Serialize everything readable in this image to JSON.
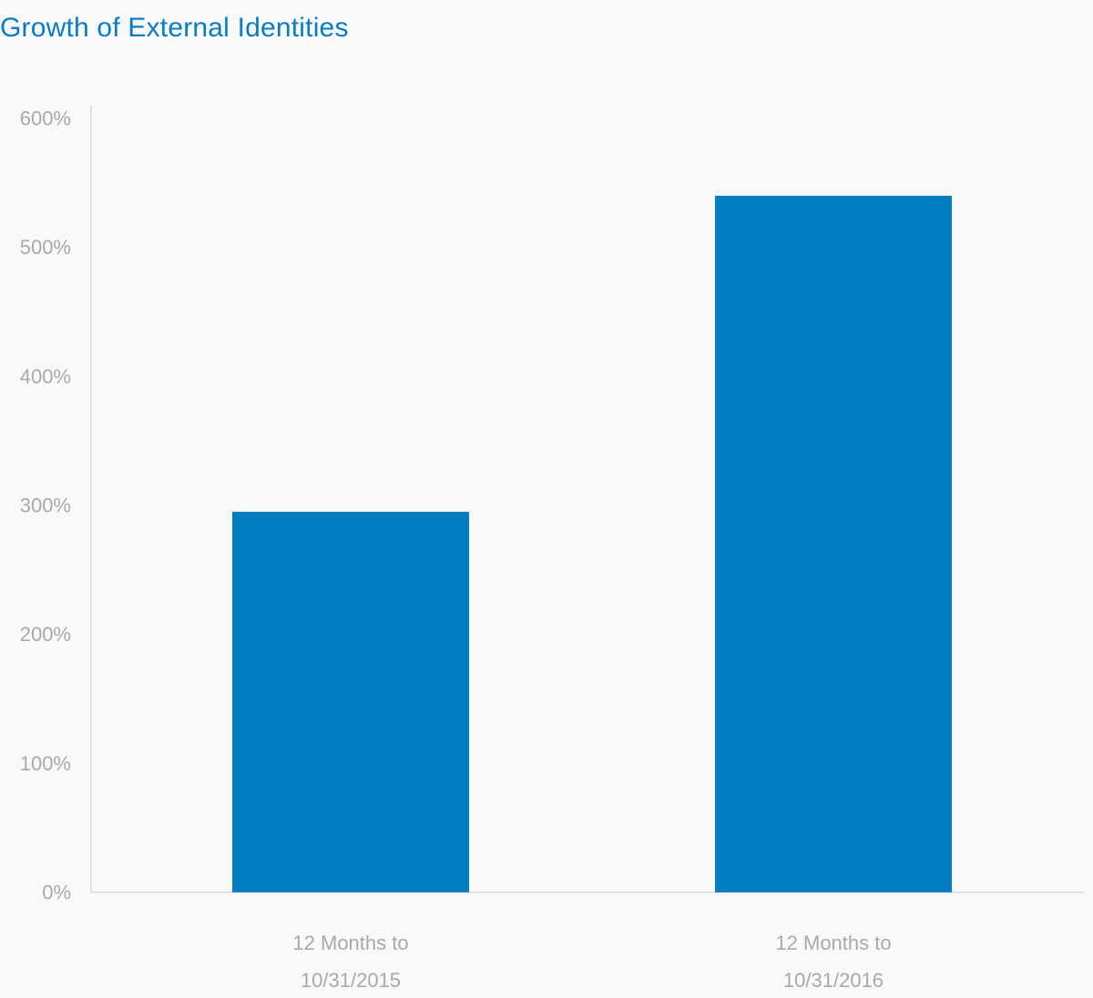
{
  "chart_data": {
    "type": "bar",
    "title": "Growth of External Identities",
    "categories": [
      [
        "12 Months to",
        "10/31/2015"
      ],
      [
        "12 Months to",
        "10/31/2016"
      ]
    ],
    "series": [
      {
        "values": [
          295,
          540
        ]
      }
    ],
    "xlabel": "",
    "ylabel": "",
    "ylim": [
      0,
      600
    ],
    "yticks": [
      0,
      100,
      200,
      300,
      400,
      500,
      600
    ],
    "ytick_labels": [
      "0%",
      "100%",
      "200%",
      "300%",
      "400%",
      "500%",
      "600%"
    ],
    "grid": false,
    "legend": "none",
    "colors": {
      "bar": "#027dc2",
      "title": "#0a7dc2",
      "tick_text": "#a9a9a9",
      "axis": "#d9d9d9"
    }
  }
}
